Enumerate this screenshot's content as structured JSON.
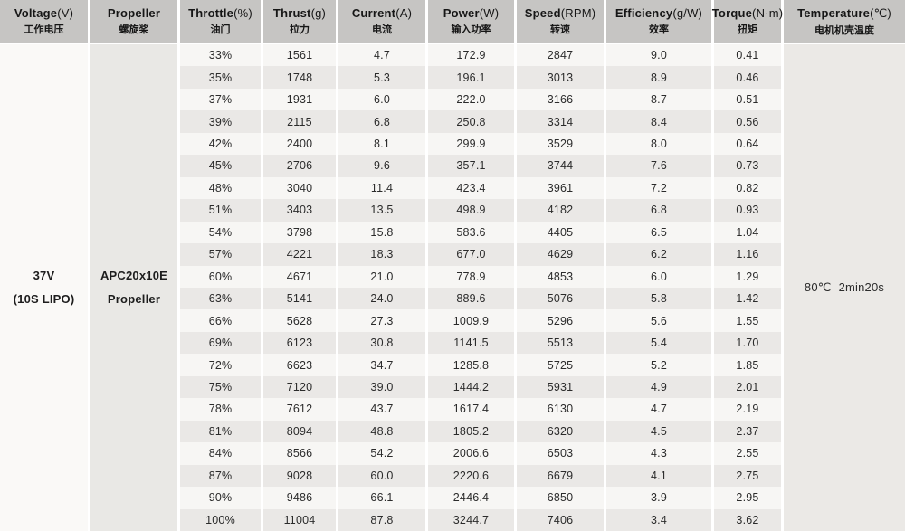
{
  "table": {
    "headers": [
      {
        "name": "Voltage",
        "unit": "(V)",
        "zh": "工作电压"
      },
      {
        "name": "Propeller",
        "unit": "",
        "zh": "螺旋桨"
      },
      {
        "name": "Throttle",
        "unit": "(%)",
        "zh": "油门"
      },
      {
        "name": "Thrust",
        "unit": "(g)",
        "zh": "拉力"
      },
      {
        "name": "Current",
        "unit": "(A)",
        "zh": "电流"
      },
      {
        "name": "Power",
        "unit": "(W)",
        "zh": "输入功率"
      },
      {
        "name": "Speed",
        "unit": "(RPM)",
        "zh": "转速"
      },
      {
        "name": "Efficiency",
        "unit": "(g/W)",
        "zh": "效率"
      },
      {
        "name": "Torque",
        "unit": "(N·m)",
        "zh": "扭矩"
      },
      {
        "name": "Temperature",
        "unit": "(℃)",
        "zh": "电机机壳温度"
      }
    ],
    "voltage": {
      "line1": "37V",
      "line2": "(10S LIPO)"
    },
    "propeller": {
      "line1": "APC20x10E",
      "line2": "Propeller"
    },
    "temperature": {
      "value": "80℃",
      "time": "2min20s"
    },
    "rows": [
      [
        "33%",
        "1561",
        "4.7",
        "172.9",
        "2847",
        "9.0",
        "0.41"
      ],
      [
        "35%",
        "1748",
        "5.3",
        "196.1",
        "3013",
        "8.9",
        "0.46"
      ],
      [
        "37%",
        "1931",
        "6.0",
        "222.0",
        "3166",
        "8.7",
        "0.51"
      ],
      [
        "39%",
        "2115",
        "6.8",
        "250.8",
        "3314",
        "8.4",
        "0.56"
      ],
      [
        "42%",
        "2400",
        "8.1",
        "299.9",
        "3529",
        "8.0",
        "0.64"
      ],
      [
        "45%",
        "2706",
        "9.6",
        "357.1",
        "3744",
        "7.6",
        "0.73"
      ],
      [
        "48%",
        "3040",
        "11.4",
        "423.4",
        "3961",
        "7.2",
        "0.82"
      ],
      [
        "51%",
        "3403",
        "13.5",
        "498.9",
        "4182",
        "6.8",
        "0.93"
      ],
      [
        "54%",
        "3798",
        "15.8",
        "583.6",
        "4405",
        "6.5",
        "1.04"
      ],
      [
        "57%",
        "4221",
        "18.3",
        "677.0",
        "4629",
        "6.2",
        "1.16"
      ],
      [
        "60%",
        "4671",
        "21.0",
        "778.9",
        "4853",
        "6.0",
        "1.29"
      ],
      [
        "63%",
        "5141",
        "24.0",
        "889.6",
        "5076",
        "5.8",
        "1.42"
      ],
      [
        "66%",
        "5628",
        "27.3",
        "1009.9",
        "5296",
        "5.6",
        "1.55"
      ],
      [
        "69%",
        "6123",
        "30.8",
        "1141.5",
        "5513",
        "5.4",
        "1.70"
      ],
      [
        "72%",
        "6623",
        "34.7",
        "1285.8",
        "5725",
        "5.2",
        "1.85"
      ],
      [
        "75%",
        "7120",
        "39.0",
        "1444.2",
        "5931",
        "4.9",
        "2.01"
      ],
      [
        "78%",
        "7612",
        "43.7",
        "1617.4",
        "6130",
        "4.7",
        "2.19"
      ],
      [
        "81%",
        "8094",
        "48.8",
        "1805.2",
        "6320",
        "4.5",
        "2.37"
      ],
      [
        "84%",
        "8566",
        "54.2",
        "2006.6",
        "6503",
        "4.3",
        "2.55"
      ],
      [
        "87%",
        "9028",
        "60.0",
        "2220.6",
        "6679",
        "4.1",
        "2.75"
      ],
      [
        "90%",
        "9486",
        "66.1",
        "2446.4",
        "6850",
        "3.9",
        "2.95"
      ],
      [
        "100%",
        "11004",
        "87.8",
        "3244.7",
        "7406",
        "3.4",
        "3.62"
      ]
    ]
  },
  "colors": {
    "header_bg": "#c6c5c3",
    "row_light": "#f7f6f4",
    "row_dark": "#eae8e6",
    "voltage_col_bg": "#faf9f7",
    "propeller_col_bg": "#e9e8e5",
    "temperature_col_bg": "#ebe9e6",
    "text": "#2b2b2b",
    "header_text": "#161616",
    "separator": "#ffffff"
  }
}
